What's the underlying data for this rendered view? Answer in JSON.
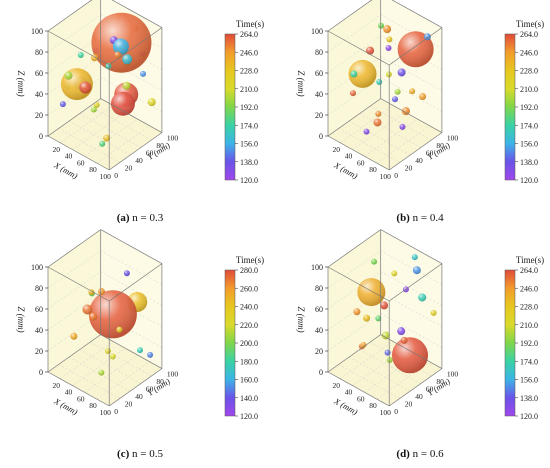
{
  "colors": {
    "cube_fill": "#fbf8da",
    "edge": "#777777",
    "scale_5": [
      "#dd4432",
      "#f0a030",
      "#dcd227",
      "#7bd455",
      "#9d4fe6"
    ],
    "scale_6": [
      "#e04a3a",
      "#f29c2c",
      "#d9da2c",
      "#63d44f",
      "#26c8d8",
      "#9d52ea"
    ],
    "scale_8": [
      "#e04a3a",
      "#f29c2c",
      "#e6c71f",
      "#d9da2c",
      "#7fd64a",
      "#3ad2a5",
      "#3cb4e6",
      "#6b54e8",
      "#a047ea"
    ]
  },
  "chart_data": [
    {
      "type": "scatter",
      "caption_label": "(a)",
      "caption_text": "n = 0.3",
      "zlabel": "Z (mm)",
      "xlabel": "X (mm)",
      "ylabel": "Y (mm)",
      "colorbar_title": "Time(s)",
      "colorbar_ticks": [
        "264.0",
        "246.0",
        "228.0",
        "210.0",
        "192.0",
        "174.0",
        "156.0",
        "138.0",
        "120.0"
      ],
      "z_ticks": [
        "100",
        "80",
        "60",
        "40",
        "20",
        "0"
      ],
      "x_ticks": [
        "20",
        "40",
        "60",
        "80",
        "100"
      ],
      "y_ticks": [
        "0",
        "20",
        "40",
        "60",
        "80",
        "100"
      ],
      "scale": [
        120,
        264
      ],
      "bubbles": [
        {
          "x": 58,
          "y": 72,
          "z": 82,
          "r": 30,
          "t": 258
        },
        {
          "x": 30,
          "y": 20,
          "z": 52,
          "r": 16,
          "t": 236
        },
        {
          "x": 52,
          "y": 88,
          "z": 25,
          "r": 12,
          "t": 262
        },
        {
          "x": 88,
          "y": 40,
          "z": 45,
          "r": 12,
          "t": 264
        },
        {
          "x": 42,
          "y": 22,
          "z": 52,
          "r": 6,
          "t": 262
        },
        {
          "x": 76,
          "y": 50,
          "z": 92,
          "r": 8,
          "t": 156
        },
        {
          "x": 33,
          "y": 24,
          "z": 52,
          "r": 7,
          "t": 145
        },
        {
          "x": 25,
          "y": 10,
          "z": 62,
          "r": 4,
          "t": 200
        },
        {
          "x": 56,
          "y": 60,
          "z": 88,
          "r": 4,
          "t": 130
        },
        {
          "x": 70,
          "y": 85,
          "z": 95,
          "r": 3.5,
          "t": 250
        },
        {
          "x": 82,
          "y": 55,
          "z": 80,
          "r": 5,
          "t": 162
        },
        {
          "x": 38,
          "y": 18,
          "z": 83,
          "r": 3,
          "t": 175
        },
        {
          "x": 68,
          "y": 70,
          "z": 45,
          "r": 4,
          "t": 205
        },
        {
          "x": 60,
          "y": 80,
          "z": 60,
          "r": 3.5,
          "t": 192
        },
        {
          "x": 45,
          "y": 40,
          "z": 30,
          "r": 3,
          "t": 220
        },
        {
          "x": 20,
          "y": 5,
          "z": 35,
          "r": 3,
          "t": 140
        },
        {
          "x": 22,
          "y": 40,
          "z": 45,
          "r": 3.5,
          "t": 190
        },
        {
          "x": 92,
          "y": 90,
          "z": 30,
          "r": 4,
          "t": 215
        },
        {
          "x": 35,
          "y": 50,
          "z": 75,
          "r": 3,
          "t": 125
        },
        {
          "x": 88,
          "y": 30,
          "z": 95,
          "r": 3.5,
          "t": 252
        },
        {
          "x": 60,
          "y": 45,
          "z": 70,
          "r": 3,
          "t": 170
        },
        {
          "x": 50,
          "y": 30,
          "z": 80,
          "r": 3.5,
          "t": 238
        },
        {
          "x": 80,
          "y": 10,
          "z": 15,
          "r": 3,
          "t": 182
        },
        {
          "x": 70,
          "y": 30,
          "z": 10,
          "r": 3.5,
          "t": 232
        },
        {
          "x": 95,
          "y": 70,
          "z": 65,
          "r": 3,
          "t": 150
        },
        {
          "x": 28,
          "y": 65,
          "z": 62,
          "r": 3,
          "t": 198
        },
        {
          "x": 40,
          "y": 85,
          "z": 96,
          "r": 3.5,
          "t": 240
        },
        {
          "x": 15,
          "y": 20,
          "z": 45,
          "r": 3,
          "t": 170
        },
        {
          "x": 75,
          "y": 92,
          "z": 70,
          "r": 3,
          "t": 122
        },
        {
          "x": 62,
          "y": 15,
          "z": 40,
          "r": 3,
          "t": 200
        }
      ]
    },
    {
      "type": "scatter",
      "caption_label": "(b)",
      "caption_text": "n = 0.4",
      "zlabel": "Z (mm)",
      "xlabel": "X (mm)",
      "ylabel": "Y (mm)",
      "colorbar_title": "Time(s)",
      "colorbar_ticks": [
        "264.0",
        "246.0",
        "228.0",
        "210.0",
        "192.0",
        "174.0",
        "156.0",
        "138.0",
        "120.0"
      ],
      "z_ticks": [
        "100",
        "80",
        "60",
        "40",
        "20",
        "0"
      ],
      "x_ticks": [
        "20",
        "40",
        "60",
        "80",
        "100"
      ],
      "y_ticks": [
        "0",
        "20",
        "40",
        "60",
        "80",
        "100"
      ],
      "scale": [
        120,
        264
      ],
      "bubbles": [
        {
          "x": 70,
          "y": 85,
          "z": 75,
          "r": 18,
          "t": 260
        },
        {
          "x": 22,
          "y": 40,
          "z": 52,
          "r": 14,
          "t": 236
        },
        {
          "x": 45,
          "y": 60,
          "z": 95,
          "r": 4,
          "t": 248
        },
        {
          "x": 30,
          "y": 45,
          "z": 75,
          "r": 4,
          "t": 262
        },
        {
          "x": 60,
          "y": 70,
          "z": 55,
          "r": 4,
          "t": 136
        },
        {
          "x": 25,
          "y": 20,
          "z": 60,
          "r": 3.5,
          "t": 175
        },
        {
          "x": 80,
          "y": 55,
          "z": 30,
          "r": 4,
          "t": 250
        },
        {
          "x": 55,
          "y": 30,
          "z": 20,
          "r": 4,
          "t": 255
        },
        {
          "x": 75,
          "y": 40,
          "z": 45,
          "r": 3,
          "t": 140
        },
        {
          "x": 90,
          "y": 75,
          "z": 40,
          "r": 3.5,
          "t": 245
        },
        {
          "x": 65,
          "y": 20,
          "z": 35,
          "r": 3,
          "t": 250
        },
        {
          "x": 40,
          "y": 70,
          "z": 80,
          "r": 3,
          "t": 230
        },
        {
          "x": 85,
          "y": 90,
          "z": 90,
          "r": 3.5,
          "t": 150
        },
        {
          "x": 35,
          "y": 60,
          "z": 95,
          "r": 3,
          "t": 190
        },
        {
          "x": 50,
          "y": 15,
          "z": 15,
          "r": 3,
          "t": 130
        },
        {
          "x": 45,
          "y": 45,
          "z": 50,
          "r": 3,
          "t": 170
        },
        {
          "x": 70,
          "y": 60,
          "z": 10,
          "r": 3,
          "t": 128
        },
        {
          "x": 88,
          "y": 30,
          "z": 60,
          "r": 3,
          "t": 200
        },
        {
          "x": 60,
          "y": 90,
          "z": 30,
          "r": 3,
          "t": 240
        },
        {
          "x": 15,
          "y": 30,
          "z": 35,
          "r": 3,
          "t": 258
        },
        {
          "x": 30,
          "y": 80,
          "z": 65,
          "r": 3,
          "t": 125
        },
        {
          "x": 78,
          "y": 25,
          "z": 75,
          "r": 3,
          "t": 210
        }
      ]
    },
    {
      "type": "scatter",
      "caption_label": "(c)",
      "caption_text": "n = 0.5",
      "zlabel": "Z (mm)",
      "xlabel": "X (mm)",
      "ylabel": "Y (mm)",
      "colorbar_title": "Time(s)",
      "colorbar_ticks": [
        "280.0",
        "260.0",
        "240.0",
        "220.0",
        "200.0",
        "180.0",
        "160.0",
        "140.0",
        "120.0"
      ],
      "z_ticks": [
        "100",
        "80",
        "60",
        "40",
        "20",
        "0"
      ],
      "x_ticks": [
        "20",
        "40",
        "60",
        "80",
        "100"
      ],
      "y_ticks": [
        "0",
        "20",
        "40",
        "60",
        "80",
        "100"
      ],
      "scale": [
        120,
        280
      ],
      "bubbles": [
        {
          "x": 50,
          "y": 65,
          "z": 48,
          "r": 24,
          "t": 276
        },
        {
          "x": 70,
          "y": 88,
          "z": 58,
          "r": 10,
          "t": 245
        },
        {
          "x": 30,
          "y": 40,
          "z": 55,
          "r": 5,
          "t": 270
        },
        {
          "x": 35,
          "y": 45,
          "z": 48,
          "r": 4,
          "t": 268
        },
        {
          "x": 40,
          "y": 55,
          "z": 70,
          "r": 3.5,
          "t": 262
        },
        {
          "x": 80,
          "y": 30,
          "z": 30,
          "r": 3,
          "t": 220
        },
        {
          "x": 25,
          "y": 20,
          "z": 35,
          "r": 3.5,
          "t": 255
        },
        {
          "x": 60,
          "y": 80,
          "z": 85,
          "r": 3,
          "t": 140
        },
        {
          "x": 55,
          "y": 50,
          "z": 20,
          "r": 3,
          "t": 230
        },
        {
          "x": 90,
          "y": 70,
          "z": 25,
          "r": 3,
          "t": 175
        },
        {
          "x": 45,
          "y": 30,
          "z": 80,
          "r": 3,
          "t": 250
        },
        {
          "x": 20,
          "y": 60,
          "z": 60,
          "r": 3,
          "t": 195
        },
        {
          "x": 70,
          "y": 20,
          "z": 15,
          "r": 3,
          "t": 210
        },
        {
          "x": 85,
          "y": 95,
          "z": 10,
          "r": 3,
          "t": 150
        },
        {
          "x": 65,
          "y": 60,
          "z": 40,
          "r": 3,
          "t": 235
        }
      ]
    },
    {
      "type": "scatter",
      "caption_label": "(d)",
      "caption_text": "n = 0.6",
      "zlabel": "Z (mm)",
      "xlabel": "X (mm)",
      "ylabel": "Y (mm)",
      "colorbar_title": "Time(s)",
      "colorbar_ticks": [
        "264.0",
        "246.0",
        "228.0",
        "210.0",
        "192.0",
        "174.0",
        "156.0",
        "138.0",
        "120.0"
      ],
      "z_ticks": [
        "100",
        "80",
        "60",
        "40",
        "20",
        "0"
      ],
      "x_ticks": [
        "20",
        "40",
        "60",
        "80",
        "100"
      ],
      "y_ticks": [
        "0",
        "20",
        "40",
        "60",
        "80",
        "100"
      ],
      "scale": [
        120,
        264
      ],
      "bubbles": [
        {
          "x": 78,
          "y": 65,
          "z": 18,
          "r": 18,
          "t": 262
        },
        {
          "x": 45,
          "y": 30,
          "z": 80,
          "r": 14,
          "t": 240
        },
        {
          "x": 72,
          "y": 85,
          "z": 90,
          "r": 4,
          "t": 150
        },
        {
          "x": 40,
          "y": 60,
          "z": 55,
          "r": 4,
          "t": 262
        },
        {
          "x": 60,
          "y": 40,
          "z": 40,
          "r": 4,
          "t": 205
        },
        {
          "x": 30,
          "y": 20,
          "z": 60,
          "r": 3.5,
          "t": 248
        },
        {
          "x": 85,
          "y": 80,
          "z": 70,
          "r": 4,
          "t": 170
        },
        {
          "x": 55,
          "y": 75,
          "z": 30,
          "r": 4,
          "t": 130
        },
        {
          "x": 20,
          "y": 50,
          "z": 40,
          "r": 3.5,
          "t": 232
        },
        {
          "x": 65,
          "y": 20,
          "z": 65,
          "r": 3,
          "t": 185
        },
        {
          "x": 90,
          "y": 40,
          "z": 45,
          "r": 3.5,
          "t": 258
        },
        {
          "x": 35,
          "y": 85,
          "z": 75,
          "r": 3,
          "t": 215
        },
        {
          "x": 50,
          "y": 55,
          "z": 15,
          "r": 3,
          "t": 142
        },
        {
          "x": 75,
          "y": 30,
          "z": 25,
          "r": 3,
          "t": 200
        },
        {
          "x": 25,
          "y": 35,
          "z": 20,
          "r": 3,
          "t": 255
        },
        {
          "x": 95,
          "y": 90,
          "z": 55,
          "r": 3,
          "t": 222
        },
        {
          "x": 60,
          "y": 95,
          "z": 95,
          "r": 3,
          "t": 165
        },
        {
          "x": 45,
          "y": 15,
          "z": 35,
          "r": 3,
          "t": 245
        },
        {
          "x": 80,
          "y": 55,
          "z": 85,
          "r": 3,
          "t": 125
        },
        {
          "x": 15,
          "y": 70,
          "z": 85,
          "r": 3,
          "t": 190
        }
      ]
    }
  ]
}
